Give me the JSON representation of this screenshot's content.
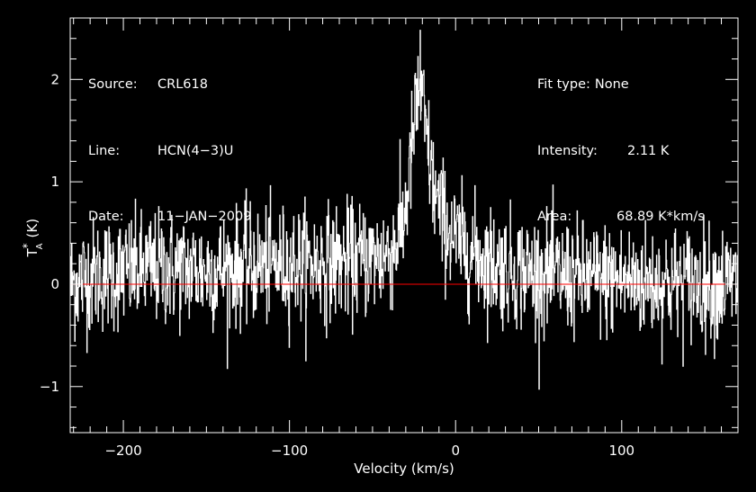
{
  "annotations": {
    "source_label": "Source:",
    "source_value": "CRL618",
    "line_label": "Line:",
    "line_value": "HCN(4−3)U",
    "date_label": "Date:",
    "date_value": "11−JAN−2009",
    "fit_label": "Fit type:",
    "fit_value": "None",
    "intensity_label": "Intensity:",
    "intensity_value": "2.11 K",
    "area_label": "Area:",
    "area_value": "68.89 K*km/s"
  },
  "colors": {
    "background": "#000000",
    "spectrum": "#ffffff",
    "axes": "#ffffff",
    "baseline": "#ff0000"
  },
  "chart_data": {
    "type": "line",
    "title": "",
    "xlabel": "Velocity (km/s)",
    "ylabel": "T*A (K)",
    "ylabel_main": "T",
    "ylabel_sup": "*",
    "ylabel_sub": "A",
    "ylabel_unit": "(K)",
    "xlim": [
      -232,
      170
    ],
    "ylim": [
      -1.45,
      2.6
    ],
    "x_ticks": [
      -200,
      -100,
      0,
      100
    ],
    "x_tick_labels": [
      "−200",
      "−100",
      "0",
      "100"
    ],
    "y_ticks": [
      -1,
      0,
      1,
      2
    ],
    "y_tick_labels": [
      "−1",
      "0",
      "1",
      "2"
    ],
    "baseline_y": 0,
    "noise_rms_K": 0.28,
    "channel_width_kms": 0.27,
    "series": [
      {
        "style": "histogram",
        "envelope_x": [
          -232,
          -220,
          -200,
          -180,
          -150,
          -120,
          -90,
          -60,
          -45,
          -38,
          -32,
          -28,
          -25,
          -22,
          -20,
          -17,
          -14,
          -10,
          -5,
          0,
          10,
          25,
          50,
          80,
          120,
          170
        ],
        "envelope_y": [
          0.0,
          0.08,
          0.12,
          0.15,
          0.13,
          0.18,
          0.2,
          0.23,
          0.26,
          0.34,
          0.55,
          1.05,
          1.55,
          1.9,
          1.75,
          1.35,
          1.0,
          0.72,
          0.55,
          0.42,
          0.3,
          0.18,
          0.1,
          0.05,
          0.02,
          0.0
        ],
        "peak": {
          "x": -21.5,
          "y": 2.48
        }
      }
    ]
  }
}
